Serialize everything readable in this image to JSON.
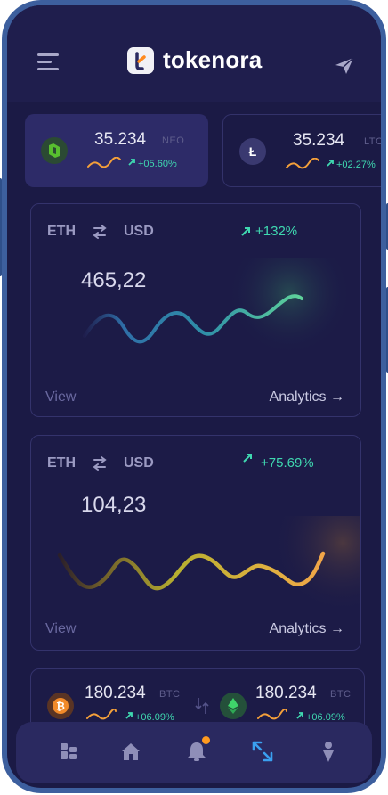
{
  "app": {
    "name": "tokenora"
  },
  "colors": {
    "accent": "#3fd8b0",
    "background": "#1b1a45",
    "card": "#2d2b68",
    "notification": "#ff9a1f"
  },
  "header": {
    "menu_icon": "hamburger-menu-icon",
    "action_icon": "send-paper-plane-icon"
  },
  "coins": [
    {
      "price": "35.234",
      "symbol": "NEO",
      "change": "+05.60%",
      "icon": "neo-coin-icon"
    },
    {
      "price": "35.234",
      "symbol": "LTC",
      "change": "+02.27%",
      "icon": "litecoin-icon"
    }
  ],
  "charts": [
    {
      "from": "ETH",
      "to": "USD",
      "change": "+132%",
      "value": "465,22",
      "view": "View",
      "analytics": "Analytics →"
    },
    {
      "from": "ETH",
      "to": "USD",
      "change": "+75.69%",
      "value": "104,23",
      "view": "View",
      "analytics": "Analytics →"
    }
  ],
  "bottom_pair": [
    {
      "price": "180.234",
      "symbol": "BTC",
      "change": "+06.09%",
      "icon": "bitcoin-icon"
    },
    {
      "price": "180.234",
      "symbol": "BTC",
      "change": "+06.09%",
      "icon": "ethereum-icon"
    }
  ],
  "tabs": [
    {
      "icon": "dashboard-icon"
    },
    {
      "icon": "home-icon"
    },
    {
      "icon": "bell-icon"
    },
    {
      "icon": "exchange-arrows-icon"
    },
    {
      "icon": "profile-icon"
    }
  ]
}
